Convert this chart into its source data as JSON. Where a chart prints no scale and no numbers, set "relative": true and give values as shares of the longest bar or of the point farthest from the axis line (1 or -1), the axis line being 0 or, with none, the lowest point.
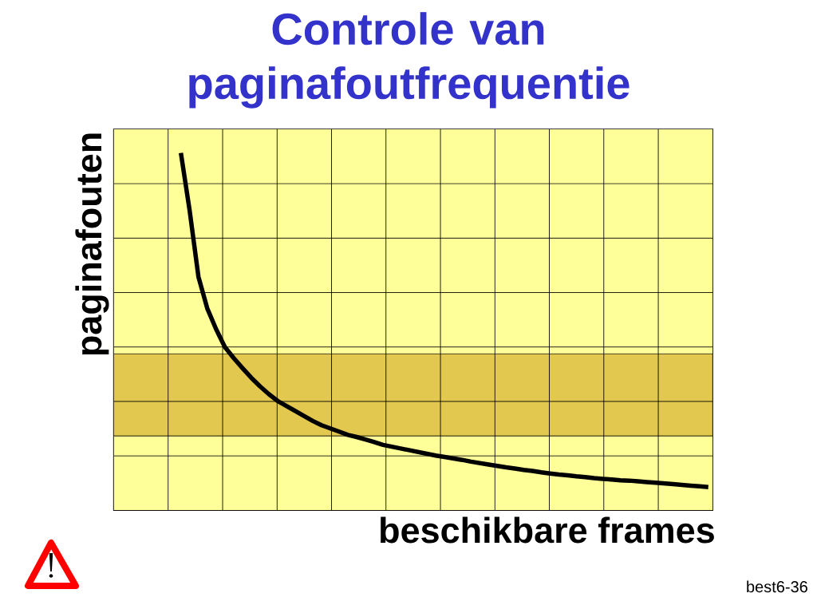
{
  "chart_data": {
    "type": "line",
    "title": "Controle van paginafoutfrequentie",
    "xlabel": "beschikbare frames",
    "ylabel": "paginafouten",
    "annotations": [
      "best6-36"
    ],
    "relative": true,
    "grid": true,
    "categories": [
      null,
      null,
      null,
      null,
      null,
      null,
      null,
      null,
      null,
      null,
      null,
      null,
      null,
      null,
      null,
      null,
      null,
      null,
      null,
      null,
      null,
      null,
      null,
      null,
      null,
      null,
      null,
      null,
      null,
      null,
      null,
      null,
      null,
      null,
      null,
      null,
      null,
      null,
      null,
      null,
      null,
      null,
      null,
      null,
      null,
      null,
      null,
      null,
      null,
      null,
      null,
      null,
      null,
      null,
      null,
      null,
      null,
      null,
      null,
      null,
      null
    ],
    "series": [
      {
        "color": "#000000",
        "values": [
          1.0,
          0.838,
          0.653,
          0.565,
          0.507,
          0.457,
          0.426,
          0.398,
          0.371,
          0.347,
          0.325,
          0.306,
          0.292,
          0.278,
          0.264,
          0.25,
          0.238,
          0.229,
          0.22,
          0.211,
          0.205,
          0.198,
          0.191,
          0.183,
          0.178,
          0.173,
          0.168,
          0.163,
          0.158,
          0.153,
          0.149,
          0.145,
          0.141,
          0.136,
          0.132,
          0.128,
          0.124,
          0.12,
          0.117,
          0.113,
          0.11,
          0.106,
          0.103,
          0.1,
          0.098,
          0.095,
          0.093,
          0.09,
          0.088,
          0.086,
          0.084,
          0.083,
          0.081,
          0.079,
          0.077,
          0.075,
          0.073,
          0.071,
          0.069,
          0.067,
          0.065
        ]
      }
    ],
    "bands": [
      {
        "axis": "y",
        "from": 0.208,
        "to": 0.438,
        "color": "#e2c84e"
      }
    ]
  }
}
